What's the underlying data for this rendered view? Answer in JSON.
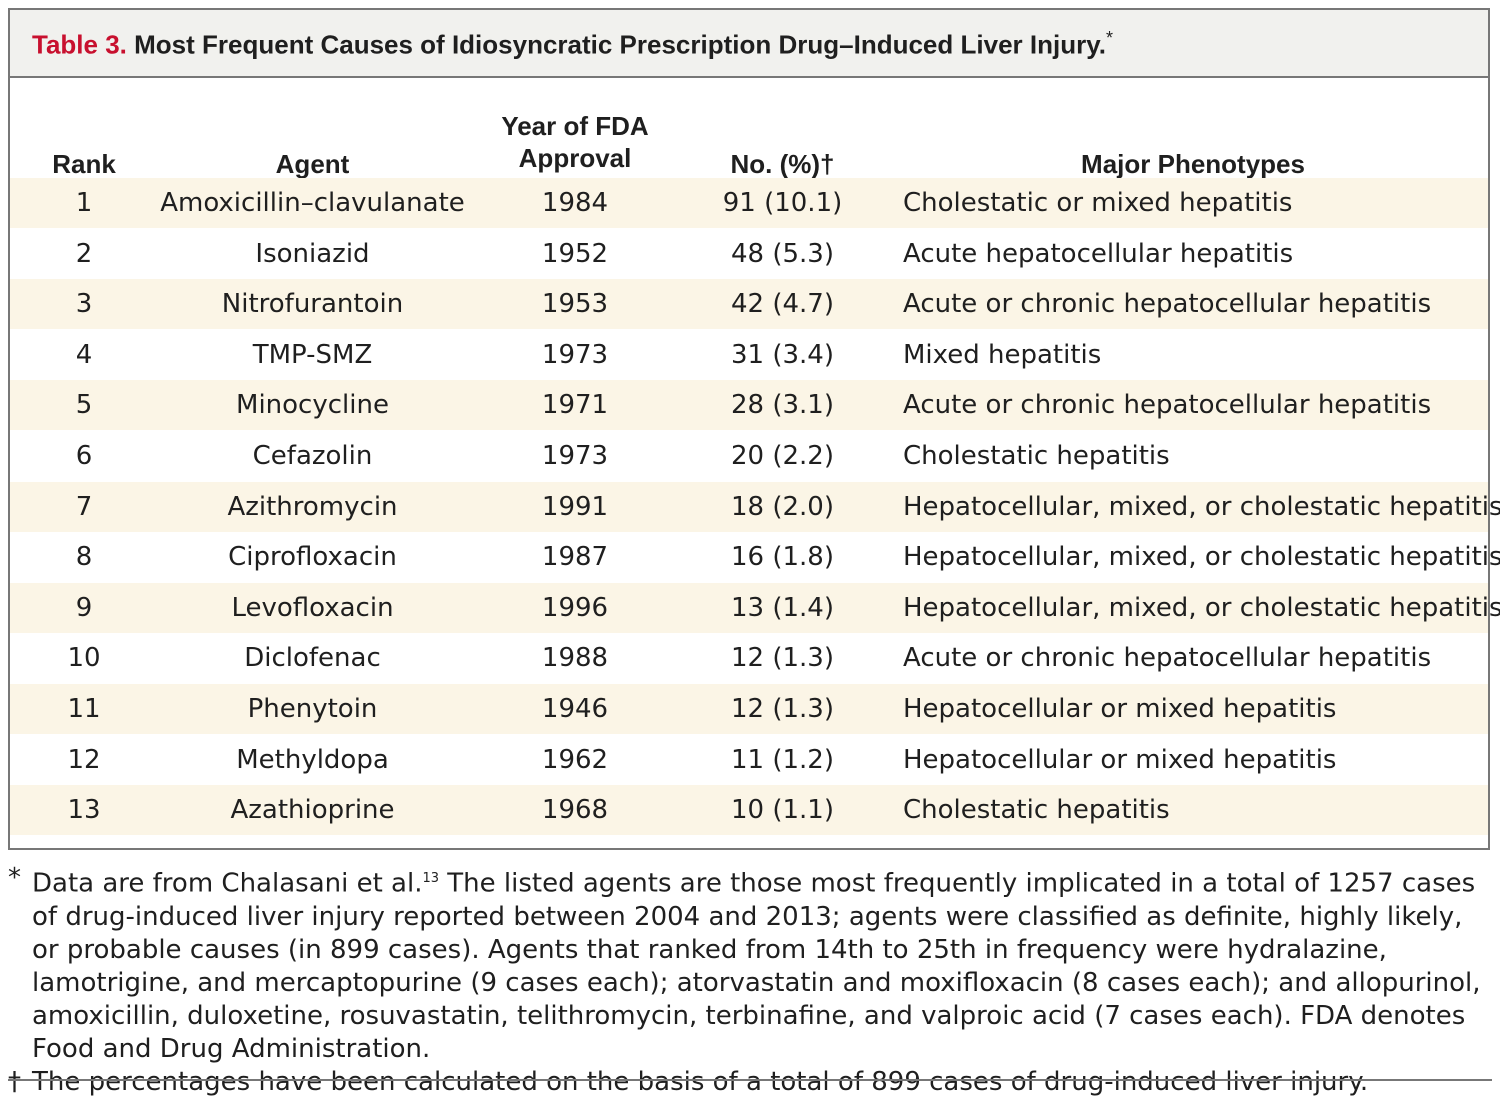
{
  "table": {
    "label": "Table 3.",
    "title": "Most Frequent Causes of Idiosyncratic Prescription Drug–Induced Liver Injury.",
    "title_mark": "*",
    "columns": {
      "rank": "Rank",
      "agent": "Agent",
      "year_line1": "Year of FDA",
      "year_line2": "Approval",
      "no": "No. (%)†",
      "phenotypes": "Major Phenotypes"
    },
    "rows": [
      {
        "rank": "1",
        "agent": "Amoxicillin–clavulanate",
        "year": "1984",
        "no": "91 (10.1)",
        "phenotype": "Cholestatic or mixed hepatitis"
      },
      {
        "rank": "2",
        "agent": "Isoniazid",
        "year": "1952",
        "no": "48 (5.3)",
        "phenotype": "Acute hepatocellular hepatitis"
      },
      {
        "rank": "3",
        "agent": "Nitrofurantoin",
        "year": "1953",
        "no": "42 (4.7)",
        "phenotype": "Acute or chronic hepatocellular hepatitis"
      },
      {
        "rank": "4",
        "agent": "TMP-SMZ",
        "year": "1973",
        "no": "31 (3.4)",
        "phenotype": "Mixed hepatitis"
      },
      {
        "rank": "5",
        "agent": "Minocycline",
        "year": "1971",
        "no": "28 (3.1)",
        "phenotype": "Acute or chronic hepatocellular hepatitis"
      },
      {
        "rank": "6",
        "agent": "Cefazolin",
        "year": "1973",
        "no": "20 (2.2)",
        "phenotype": "Cholestatic hepatitis"
      },
      {
        "rank": "7",
        "agent": "Azithromycin",
        "year": "1991",
        "no": "18 (2.0)",
        "phenotype": "Hepatocellular, mixed, or cholestatic hepatitis"
      },
      {
        "rank": "8",
        "agent": "Ciprofloxacin",
        "year": "1987",
        "no": "16 (1.8)",
        "phenotype": "Hepatocellular, mixed, or cholestatic hepatitis"
      },
      {
        "rank": "9",
        "agent": "Levofloxacin",
        "year": "1996",
        "no": "13 (1.4)",
        "phenotype": "Hepatocellular, mixed, or cholestatic hepatitis"
      },
      {
        "rank": "10",
        "agent": "Diclofenac",
        "year": "1988",
        "no": "12 (1.3)",
        "phenotype": "Acute or chronic hepatocellular hepatitis"
      },
      {
        "rank": "11",
        "agent": "Phenytoin",
        "year": "1946",
        "no": "12 (1.3)",
        "phenotype": "Hepatocellular or mixed hepatitis"
      },
      {
        "rank": "12",
        "agent": "Methyldopa",
        "year": "1962",
        "no": "11 (1.2)",
        "phenotype": "Hepatocellular or mixed hepatitis"
      },
      {
        "rank": "13",
        "agent": "Azathioprine",
        "year": "1968",
        "no": "10 (1.1)",
        "phenotype": "Cholestatic hepatitis"
      }
    ]
  },
  "footnotes": {
    "star_mark": "*",
    "star_lead": "Data are from Chalasani et al.",
    "star_ref": "13",
    "star_text": " The listed agents are those most frequently implicated in a total of 1257 cases of drug-induced liver injury reported between 2004 and 2013; agents were classified as definite, highly likely, or probable causes (in 899 cases). Agents that ranked from 14th to 25th in frequency were hydralazine, lamotrigine, and mercaptopurine (9 cases each); atorvastatin and moxifloxacin (8 cases each); and allopurinol, amoxicillin, duloxetine, rosuvastatin, telithromycin, terbinafine, and valproic acid (7 cases each). FDA denotes Food and Drug Administration.",
    "dagger_mark": "†",
    "dagger_text": "The percentages have been calculated on the basis of a total of 899 cases of drug-induced liver injury."
  },
  "colors": {
    "label_red": "#c8102e",
    "row_shade": "#fbf5e6",
    "title_bar": "#f1f1ee",
    "rule": "#777777"
  }
}
